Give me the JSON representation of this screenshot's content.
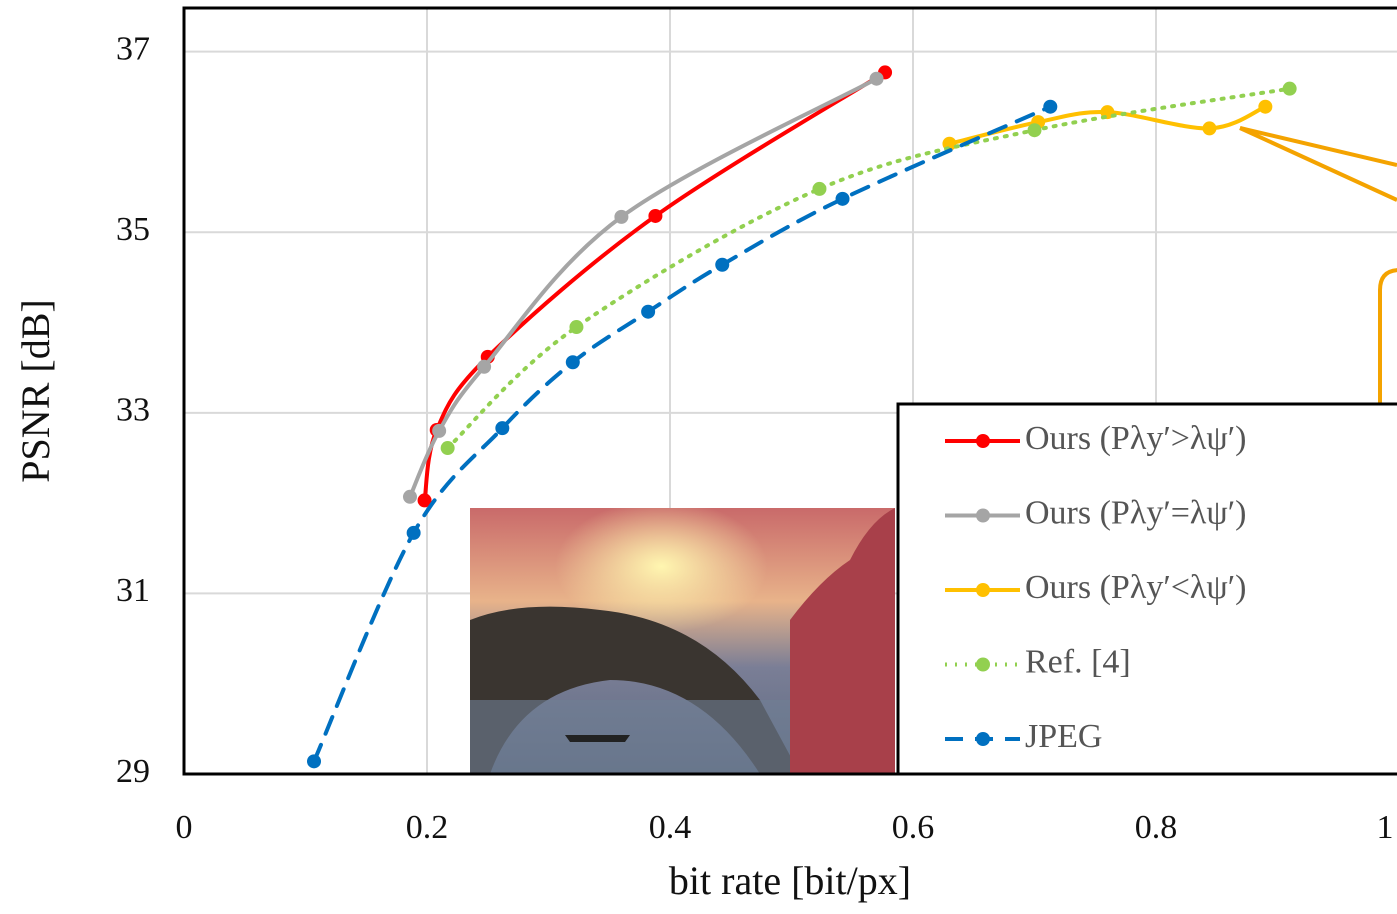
{
  "chart_data": {
    "type": "line",
    "xlabel": "bit rate [bit/px]",
    "ylabel": "PSNR [dB]",
    "xlim": [
      0,
      1
    ],
    "ylim": [
      29,
      37.5
    ],
    "xticks": [
      0,
      0.2,
      0.4,
      0.6,
      0.8,
      1
    ],
    "yticks": [
      29,
      31,
      33,
      35,
      37
    ],
    "grid": true,
    "series": [
      {
        "name": "Ours (Pλy′>λψ′)",
        "color": "#ff0000",
        "dash": "solid",
        "x": [
          0.198,
          0.208,
          0.25,
          0.388,
          0.577
        ],
        "values": [
          32.03,
          32.81,
          33.62,
          35.18,
          36.77
        ]
      },
      {
        "name": "Ours (Pλy′=λψ′)",
        "color": "#a5a5a5",
        "dash": "solid",
        "x": [
          0.186,
          0.21,
          0.247,
          0.36,
          0.57
        ],
        "values": [
          32.07,
          32.8,
          33.51,
          35.17,
          36.7
        ]
      },
      {
        "name": "Ours (Pλy′<λψ′)",
        "color": "#ffc000",
        "dash": "solid",
        "x": [
          0.63,
          0.703,
          0.76,
          0.844,
          0.89
        ],
        "values": [
          35.98,
          36.22,
          36.33,
          36.15,
          36.39
        ]
      },
      {
        "name": "Ref. [4]",
        "color": "#92d050",
        "dash": "dotted",
        "x": [
          0.217,
          0.323,
          0.523,
          0.7,
          0.91
        ],
        "values": [
          32.61,
          33.95,
          35.48,
          36.13,
          36.59
        ]
      },
      {
        "name": "JPEG",
        "color": "#0070c0",
        "dash": "dashed",
        "x": [
          0.107,
          0.189,
          0.262,
          0.32,
          0.382,
          0.443,
          0.542,
          0.713
        ],
        "values": [
          29.14,
          31.67,
          32.83,
          33.56,
          34.12,
          34.64,
          35.37,
          36.39
        ]
      }
    ]
  }
}
